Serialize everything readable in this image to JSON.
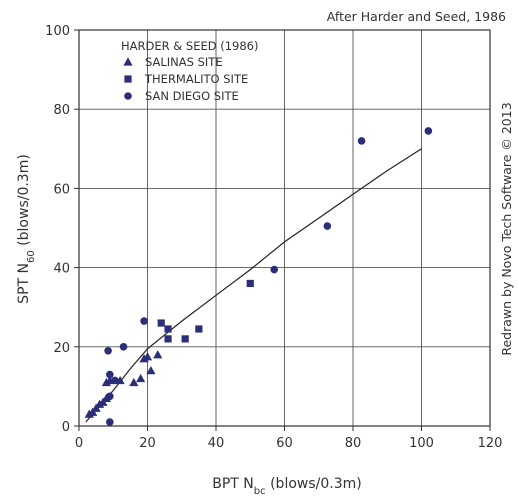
{
  "chart_data": {
    "type": "scatter",
    "annotation": "After Harder and Seed, 1986",
    "credit": "Redrawn by Novo Tech Software © 2013",
    "xlabel": {
      "main": "BPT N",
      "sub": "bc",
      "rest": " (blows/0.3m)"
    },
    "ylabel": {
      "main": "SPT N",
      "sub": "60",
      "rest": " (blows/0.3m)"
    },
    "xlim": [
      0,
      120
    ],
    "ylim": [
      0,
      100
    ],
    "x_ticks": [
      "0",
      "20",
      "40",
      "60",
      "80",
      "100",
      "120"
    ],
    "y_ticks": [
      "0",
      "20",
      "40",
      "60",
      "80",
      "100"
    ],
    "grid": true,
    "legend_title": "HARDER & SEED (1986)",
    "legend_position": "top-left",
    "series": [
      {
        "name": "SALINAS SITE",
        "marker": "triangle",
        "color": "#2b2f7a",
        "points": [
          [
            3,
            3
          ],
          [
            4,
            3.5
          ],
          [
            5,
            4.5
          ],
          [
            6,
            5.5
          ],
          [
            7,
            6
          ],
          [
            8,
            7
          ],
          [
            8,
            11
          ],
          [
            9,
            11.5
          ],
          [
            12,
            11.5
          ],
          [
            16,
            11
          ],
          [
            18,
            12
          ],
          [
            19,
            17
          ],
          [
            20,
            17.5
          ],
          [
            21,
            14
          ],
          [
            23,
            18
          ]
        ]
      },
      {
        "name": "THERMALITO SITE",
        "marker": "square",
        "color": "#2b2f7a",
        "points": [
          [
            24,
            26
          ],
          [
            26,
            24.5
          ],
          [
            26,
            22
          ],
          [
            31,
            22
          ],
          [
            35,
            24.5
          ],
          [
            50,
            36
          ]
        ]
      },
      {
        "name": "SAN DIEGO SITE",
        "marker": "circle",
        "color": "#2b2f7a",
        "points": [
          [
            8.5,
            19
          ],
          [
            9,
            13
          ],
          [
            9,
            7.5
          ],
          [
            9,
            1
          ],
          [
            10.5,
            11.5
          ],
          [
            13,
            20
          ],
          [
            19,
            26.5
          ],
          [
            57,
            39.5
          ],
          [
            72.5,
            50.5
          ],
          [
            82.5,
            72
          ],
          [
            102,
            74.5
          ]
        ]
      }
    ],
    "trend_line": [
      [
        2,
        1
      ],
      [
        5,
        4
      ],
      [
        10,
        9
      ],
      [
        15,
        14.5
      ],
      [
        20,
        19.5
      ],
      [
        30,
        26.5
      ],
      [
        40,
        33
      ],
      [
        50,
        39.5
      ],
      [
        60,
        46.5
      ],
      [
        70,
        52.5
      ],
      [
        80,
        58.5
      ],
      [
        90,
        64.5
      ],
      [
        100,
        70
      ]
    ]
  }
}
